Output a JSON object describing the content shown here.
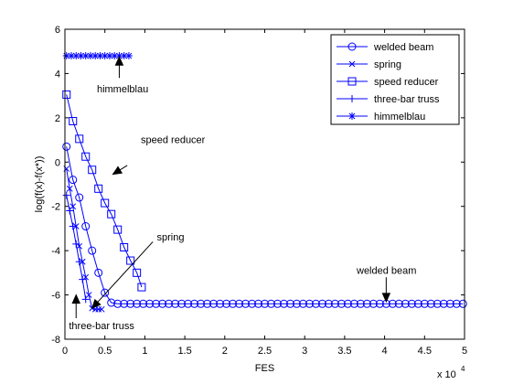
{
  "chart_data": {
    "type": "line",
    "xlabel": "FES",
    "ylabel": "log(f(x)-f(x*))",
    "x_multiplier_label": {
      "base": "x 10",
      "exponent": "4"
    },
    "xlim": [
      0,
      5
    ],
    "ylim": [
      -8,
      6
    ],
    "x_ticks": [
      0,
      0.5,
      1,
      1.5,
      2,
      2.5,
      3,
      3.5,
      4,
      4.5,
      5
    ],
    "x_tick_labels": [
      "0",
      "0.5",
      "1",
      "1.5",
      "2",
      "2.5",
      "3",
      "3.5",
      "4",
      "4.5",
      "5"
    ],
    "y_ticks": [
      -8,
      -6,
      -4,
      -2,
      0,
      2,
      4,
      6
    ],
    "y_tick_labels": [
      "-8",
      "-6",
      "-4",
      "-2",
      "0",
      "2",
      "4",
      "6"
    ],
    "grid": false,
    "legend_position": "top-right",
    "series": [
      {
        "name": "welded beam",
        "marker": "circle",
        "color": "#0000ff",
        "points": [
          [
            0.02,
            0.7
          ],
          [
            0.1,
            -0.8
          ],
          [
            0.18,
            -1.6
          ],
          [
            0.26,
            -2.9
          ],
          [
            0.34,
            -4.0
          ],
          [
            0.42,
            -5.0
          ],
          [
            0.5,
            -5.9
          ],
          [
            0.58,
            -6.35
          ],
          [
            0.66,
            -6.4
          ],
          [
            0.74,
            -6.4
          ],
          [
            0.82,
            -6.4
          ],
          [
            0.9,
            -6.4
          ],
          [
            0.98,
            -6.4
          ],
          [
            1.06,
            -6.4
          ],
          [
            1.14,
            -6.4
          ],
          [
            1.22,
            -6.4
          ],
          [
            1.3,
            -6.4
          ],
          [
            1.38,
            -6.4
          ],
          [
            1.46,
            -6.4
          ],
          [
            1.54,
            -6.4
          ],
          [
            1.62,
            -6.4
          ],
          [
            1.7,
            -6.4
          ],
          [
            1.78,
            -6.4
          ],
          [
            1.86,
            -6.4
          ],
          [
            1.94,
            -6.4
          ],
          [
            2.02,
            -6.4
          ],
          [
            2.1,
            -6.4
          ],
          [
            2.18,
            -6.4
          ],
          [
            2.26,
            -6.4
          ],
          [
            2.34,
            -6.4
          ],
          [
            2.42,
            -6.4
          ],
          [
            2.5,
            -6.4
          ],
          [
            2.58,
            -6.4
          ],
          [
            2.66,
            -6.4
          ],
          [
            2.74,
            -6.4
          ],
          [
            2.82,
            -6.4
          ],
          [
            2.9,
            -6.4
          ],
          [
            2.98,
            -6.4
          ],
          [
            3.06,
            -6.4
          ],
          [
            3.14,
            -6.4
          ],
          [
            3.22,
            -6.4
          ],
          [
            3.3,
            -6.4
          ],
          [
            3.38,
            -6.4
          ],
          [
            3.46,
            -6.4
          ],
          [
            3.54,
            -6.4
          ],
          [
            3.62,
            -6.4
          ],
          [
            3.7,
            -6.4
          ],
          [
            3.78,
            -6.4
          ],
          [
            3.86,
            -6.4
          ],
          [
            3.94,
            -6.4
          ],
          [
            4.02,
            -6.4
          ],
          [
            4.1,
            -6.4
          ],
          [
            4.18,
            -6.4
          ],
          [
            4.26,
            -6.4
          ],
          [
            4.34,
            -6.4
          ],
          [
            4.42,
            -6.4
          ],
          [
            4.5,
            -6.4
          ],
          [
            4.58,
            -6.4
          ],
          [
            4.66,
            -6.4
          ],
          [
            4.74,
            -6.4
          ],
          [
            4.82,
            -6.4
          ],
          [
            4.9,
            -6.4
          ],
          [
            4.98,
            -6.4
          ]
        ]
      },
      {
        "name": "spring",
        "marker": "x",
        "color": "#0000ff",
        "points": [
          [
            0.02,
            -0.3
          ],
          [
            0.06,
            -1.2
          ],
          [
            0.1,
            -2.0
          ],
          [
            0.14,
            -2.9
          ],
          [
            0.18,
            -3.8
          ],
          [
            0.22,
            -4.5
          ],
          [
            0.26,
            -5.2
          ],
          [
            0.3,
            -6.0
          ],
          [
            0.34,
            -6.6
          ],
          [
            0.38,
            -6.65
          ],
          [
            0.42,
            -6.65
          ],
          [
            0.46,
            -6.65
          ]
        ]
      },
      {
        "name": "speed reducer",
        "marker": "square",
        "color": "#0000ff",
        "points": [
          [
            0.02,
            3.05
          ],
          [
            0.1,
            1.85
          ],
          [
            0.18,
            1.05
          ],
          [
            0.26,
            0.25
          ],
          [
            0.34,
            -0.35
          ],
          [
            0.42,
            -1.2
          ],
          [
            0.5,
            -1.85
          ],
          [
            0.58,
            -2.35
          ],
          [
            0.66,
            -3.05
          ],
          [
            0.74,
            -3.85
          ],
          [
            0.82,
            -4.45
          ],
          [
            0.9,
            -5.0
          ],
          [
            0.96,
            -5.65
          ]
        ]
      },
      {
        "name": "three-bar truss",
        "marker": "plus",
        "color": "#0000ff",
        "points": [
          [
            0.02,
            -1.5
          ],
          [
            0.06,
            -2.2
          ],
          [
            0.1,
            -2.9
          ],
          [
            0.14,
            -3.7
          ],
          [
            0.18,
            -4.5
          ],
          [
            0.22,
            -5.3
          ],
          [
            0.26,
            -6.2
          ]
        ]
      },
      {
        "name": "himmelblau",
        "marker": "star",
        "color": "#0000ff",
        "points": [
          [
            0.02,
            4.8
          ],
          [
            0.08,
            4.8
          ],
          [
            0.14,
            4.8
          ],
          [
            0.2,
            4.8
          ],
          [
            0.26,
            4.8
          ],
          [
            0.32,
            4.8
          ],
          [
            0.38,
            4.8
          ],
          [
            0.44,
            4.8
          ],
          [
            0.5,
            4.8
          ],
          [
            0.56,
            4.8
          ],
          [
            0.62,
            4.8
          ],
          [
            0.68,
            4.8
          ],
          [
            0.74,
            4.8
          ],
          [
            0.8,
            4.8
          ]
        ]
      }
    ],
    "annotations": [
      {
        "text": "himmelblau",
        "text_pos": [
          0.4,
          3.15
        ],
        "arrow_from": [
          0.68,
          3.8
        ],
        "arrow_to": [
          0.68,
          4.75
        ]
      },
      {
        "text": "speed reducer",
        "text_pos": [
          0.95,
          0.85
        ],
        "arrow_from": [
          0.78,
          -0.15
        ],
        "arrow_to": [
          0.6,
          -0.55
        ]
      },
      {
        "text": "spring",
        "text_pos": [
          1.15,
          -3.55
        ],
        "arrow_from": [
          1.1,
          -3.6
        ],
        "arrow_to": [
          0.34,
          -6.6
        ]
      },
      {
        "text": "three-bar truss",
        "text_pos": [
          0.05,
          -7.55
        ],
        "arrow_from": [
          0.14,
          -7.05
        ],
        "arrow_to": [
          0.14,
          -6.0
        ]
      },
      {
        "text": "welded beam",
        "text_pos": [
          3.65,
          -5.05
        ],
        "arrow_from": [
          4.02,
          -5.2
        ],
        "arrow_to": [
          4.02,
          -6.3
        ]
      }
    ]
  }
}
